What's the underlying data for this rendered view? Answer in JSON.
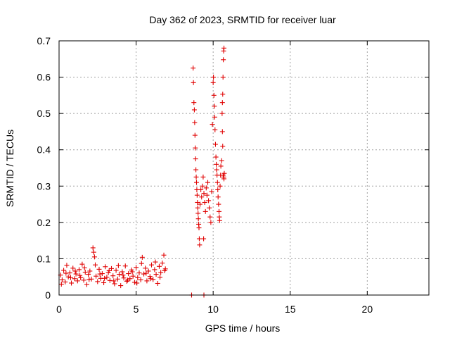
{
  "chart_data": {
    "type": "scatter",
    "title": "Day 362 of 2023, SRMTID for receiver luar",
    "xlabel": "GPS time / hours",
    "ylabel": "SRMTID / TECUs",
    "xlim": [
      0,
      24
    ],
    "ylim": [
      0,
      0.7
    ],
    "xticks": [
      "0",
      "5",
      "10",
      "15",
      "20"
    ],
    "yticks": [
      "0",
      "0.1",
      "0.2",
      "0.3",
      "0.4",
      "0.5",
      "0.6",
      "0.7"
    ],
    "grid": true,
    "legend": "none",
    "marker": "plus",
    "color": "#e00000",
    "series": [
      {
        "points": [
          [
            0.1,
            0.055
          ],
          [
            0.2,
            0.042
          ],
          [
            0.3,
            0.068
          ],
          [
            0.4,
            0.036
          ],
          [
            0.5,
            0.082
          ],
          [
            0.6,
            0.05
          ],
          [
            0.7,
            0.061
          ],
          [
            0.8,
            0.033
          ],
          [
            0.9,
            0.074
          ],
          [
            1.0,
            0.045
          ],
          [
            1.1,
            0.058
          ],
          [
            1.2,
            0.039
          ],
          [
            1.3,
            0.07
          ],
          [
            1.4,
            0.048
          ],
          [
            1.5,
            0.085
          ],
          [
            1.6,
            0.041
          ],
          [
            1.7,
            0.063
          ],
          [
            1.8,
            0.029
          ],
          [
            1.9,
            0.057
          ],
          [
            2.0,
            0.066
          ],
          [
            2.1,
            0.044
          ],
          [
            2.2,
            0.13
          ],
          [
            2.25,
            0.118
          ],
          [
            2.3,
            0.105
          ],
          [
            2.4,
            0.052
          ],
          [
            2.5,
            0.037
          ],
          [
            2.6,
            0.071
          ],
          [
            2.7,
            0.046
          ],
          [
            2.8,
            0.059
          ],
          [
            2.9,
            0.034
          ],
          [
            3.0,
            0.078
          ],
          [
            3.1,
            0.049
          ],
          [
            3.2,
            0.062
          ],
          [
            3.3,
            0.04
          ],
          [
            3.4,
            0.073
          ],
          [
            3.5,
            0.053
          ],
          [
            3.6,
            0.031
          ],
          [
            3.7,
            0.068
          ],
          [
            3.8,
            0.044
          ],
          [
            3.9,
            0.057
          ],
          [
            4.0,
            0.026
          ],
          [
            4.1,
            0.064
          ],
          [
            4.2,
            0.047
          ],
          [
            4.3,
            0.08
          ],
          [
            4.4,
            0.038
          ],
          [
            4.5,
            0.059
          ],
          [
            4.6,
            0.045
          ],
          [
            4.7,
            0.069
          ],
          [
            4.8,
            0.052
          ],
          [
            4.9,
            0.035
          ],
          [
            5.0,
            0.076
          ],
          [
            5.1,
            0.048
          ],
          [
            5.2,
            0.061
          ],
          [
            5.3,
            0.042
          ],
          [
            5.4,
            0.104
          ],
          [
            5.5,
            0.058
          ],
          [
            5.6,
            0.074
          ],
          [
            5.7,
            0.039
          ],
          [
            5.8,
            0.066
          ],
          [
            5.9,
            0.051
          ],
          [
            6.0,
            0.083
          ],
          [
            6.1,
            0.043
          ],
          [
            6.2,
            0.07
          ],
          [
            6.3,
            0.057
          ],
          [
            6.4,
            0.032
          ],
          [
            6.5,
            0.079
          ],
          [
            6.6,
            0.062
          ],
          [
            6.7,
            0.088
          ],
          [
            6.8,
            0.11
          ],
          [
            6.9,
            0.072
          ],
          [
            0.15,
            0.03
          ],
          [
            0.45,
            0.06
          ],
          [
            0.75,
            0.048
          ],
          [
            1.05,
            0.066
          ],
          [
            1.35,
            0.054
          ],
          [
            1.65,
            0.075
          ],
          [
            1.95,
            0.043
          ],
          [
            2.35,
            0.083
          ],
          [
            2.65,
            0.058
          ],
          [
            2.95,
            0.046
          ],
          [
            3.25,
            0.067
          ],
          [
            3.55,
            0.039
          ],
          [
            3.85,
            0.081
          ],
          [
            4.15,
            0.055
          ],
          [
            4.45,
            0.041
          ],
          [
            4.75,
            0.064
          ],
          [
            5.05,
            0.033
          ],
          [
            5.35,
            0.087
          ],
          [
            5.65,
            0.06
          ],
          [
            5.95,
            0.045
          ],
          [
            6.25,
            0.091
          ],
          [
            6.55,
            0.049
          ],
          [
            6.85,
            0.067
          ],
          [
            8.6,
            0.0
          ],
          [
            9.4,
            0.0
          ],
          [
            8.7,
            0.625
          ],
          [
            8.72,
            0.585
          ],
          [
            8.75,
            0.53
          ],
          [
            8.78,
            0.51
          ],
          [
            8.8,
            0.475
          ],
          [
            8.82,
            0.44
          ],
          [
            8.84,
            0.405
          ],
          [
            8.86,
            0.375
          ],
          [
            8.88,
            0.345
          ],
          [
            8.9,
            0.325
          ],
          [
            8.92,
            0.31
          ],
          [
            8.94,
            0.29
          ],
          [
            8.96,
            0.275
          ],
          [
            8.98,
            0.255
          ],
          [
            9.0,
            0.24
          ],
          [
            9.02,
            0.225
          ],
          [
            9.04,
            0.21
          ],
          [
            9.06,
            0.195
          ],
          [
            9.08,
            0.185
          ],
          [
            9.1,
            0.155
          ],
          [
            9.12,
            0.138
          ],
          [
            9.15,
            0.25
          ],
          [
            9.2,
            0.29
          ],
          [
            9.25,
            0.27
          ],
          [
            9.3,
            0.3
          ],
          [
            9.35,
            0.325
          ],
          [
            9.38,
            0.155
          ],
          [
            9.4,
            0.28
          ],
          [
            9.45,
            0.255
          ],
          [
            9.5,
            0.23
          ],
          [
            9.55,
            0.295
          ],
          [
            9.6,
            0.275
          ],
          [
            9.65,
            0.31
          ],
          [
            9.7,
            0.26
          ],
          [
            9.75,
            0.24
          ],
          [
            9.8,
            0.215
          ],
          [
            9.85,
            0.2
          ],
          [
            9.9,
            0.285
          ],
          [
            9.95,
            0.47
          ],
          [
            10.0,
            0.585
          ],
          [
            10.02,
            0.6
          ],
          [
            10.05,
            0.55
          ],
          [
            10.08,
            0.52
          ],
          [
            10.1,
            0.49
          ],
          [
            10.12,
            0.455
          ],
          [
            10.15,
            0.415
          ],
          [
            10.18,
            0.38
          ],
          [
            10.2,
            0.36
          ],
          [
            10.22,
            0.345
          ],
          [
            10.25,
            0.33
          ],
          [
            10.28,
            0.31
          ],
          [
            10.3,
            0.29
          ],
          [
            10.32,
            0.27
          ],
          [
            10.35,
            0.25
          ],
          [
            10.38,
            0.23
          ],
          [
            10.4,
            0.215
          ],
          [
            10.42,
            0.205
          ],
          [
            10.45,
            0.3
          ],
          [
            10.48,
            0.33
          ],
          [
            10.5,
            0.355
          ],
          [
            10.55,
            0.37
          ],
          [
            10.58,
            0.5
          ],
          [
            10.6,
            0.53
          ],
          [
            10.62,
            0.553
          ],
          [
            10.64,
            0.6
          ],
          [
            10.66,
            0.648
          ],
          [
            10.68,
            0.672
          ],
          [
            10.7,
            0.68
          ],
          [
            10.6,
            0.45
          ],
          [
            10.62,
            0.41
          ],
          [
            10.65,
            0.33
          ],
          [
            10.68,
            0.325
          ],
          [
            10.7,
            0.32
          ],
          [
            10.72,
            0.335
          ]
        ]
      }
    ]
  }
}
